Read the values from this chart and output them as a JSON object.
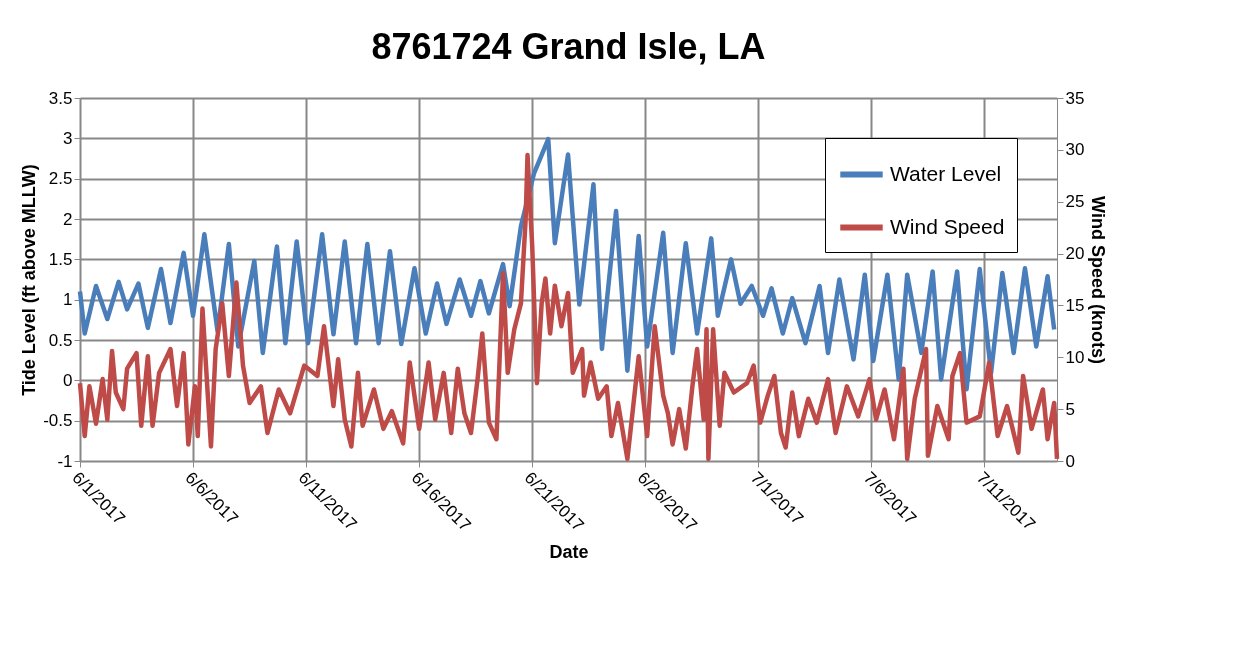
{
  "chart_data": {
    "type": "line",
    "title": "8761724 Grand Isle, LA",
    "xlabel": "Date",
    "ylabel": "Tide Level (ft above MLLW)",
    "y2label": "Wind Speed (knots)",
    "xlim": [
      "2017-06-01",
      "2017-07-14T05:00"
    ],
    "xticks": [
      {
        "value": "2017-06-01",
        "label": "6/1/2017"
      },
      {
        "value": "2017-06-06",
        "label": "6/6/2017"
      },
      {
        "value": "2017-06-11",
        "label": "6/11/2017"
      },
      {
        "value": "2017-06-16",
        "label": "6/16/2017"
      },
      {
        "value": "2017-06-21",
        "label": "6/21/2017"
      },
      {
        "value": "2017-06-26",
        "label": "6/26/2017"
      },
      {
        "value": "2017-07-01",
        "label": "7/1/2017"
      },
      {
        "value": "2017-07-06",
        "label": "7/6/2017"
      },
      {
        "value": "2017-07-11",
        "label": "7/11/2017"
      }
    ],
    "ylim": [
      -1,
      3.5
    ],
    "yticks": [
      -1,
      -0.5,
      0,
      0.5,
      1,
      1.5,
      2,
      2.5,
      3,
      3.5
    ],
    "y2lim": [
      0,
      35
    ],
    "y2ticks": [
      0,
      5,
      10,
      15,
      20,
      25,
      30,
      35
    ],
    "grid": true,
    "legend": "top right",
    "line_style": "solid",
    "marker": "none",
    "series": [
      {
        "name": "Water Level",
        "color": "#4a7ebb",
        "x": [
          "2017-06-01T00:00",
          "2017-06-01T05:00",
          "2017-06-01T17:00",
          "2017-06-02T05:00",
          "2017-06-02T17:00",
          "2017-06-03T02:00",
          "2017-06-03T14:00",
          "2017-06-04T00:00",
          "2017-06-04T14:00",
          "2017-06-05T00:00",
          "2017-06-05T14:00",
          "2017-06-06T00:00",
          "2017-06-06T12:00",
          "2017-06-07T02:00",
          "2017-06-07T14:00",
          "2017-06-08T00:00",
          "2017-06-08T17:00",
          "2017-06-09T02:00",
          "2017-06-09T17:00",
          "2017-06-10T02:00",
          "2017-06-10T14:00",
          "2017-06-11T02:00",
          "2017-06-11T17:00",
          "2017-06-12T05:00",
          "2017-06-12T17:00",
          "2017-06-13T05:00",
          "2017-06-13T17:00",
          "2017-06-14T05:00",
          "2017-06-14T17:00",
          "2017-06-15T05:00",
          "2017-06-15T19:00",
          "2017-06-16T07:00",
          "2017-06-16T19:00",
          "2017-06-17T05:00",
          "2017-06-17T19:00",
          "2017-06-18T07:00",
          "2017-06-18T17:00",
          "2017-06-19T02:00",
          "2017-06-19T17:00",
          "2017-06-20T00:00",
          "2017-06-20T12:00",
          "2017-06-21T02:00",
          "2017-06-21T17:00",
          "2017-06-22T00:00",
          "2017-06-22T14:00",
          "2017-06-23T02:00",
          "2017-06-23T17:00",
          "2017-06-24T02:00",
          "2017-06-24T17:00",
          "2017-06-25T05:00",
          "2017-06-25T17:00",
          "2017-06-26T02:00",
          "2017-06-26T19:00",
          "2017-06-27T05:00",
          "2017-06-27T19:00",
          "2017-06-28T07:00",
          "2017-06-28T22:00",
          "2017-06-29T05:00",
          "2017-06-29T19:00",
          "2017-06-30T05:00",
          "2017-06-30T17:00",
          "2017-07-01T05:00",
          "2017-07-01T14:00",
          "2017-07-02T02:00",
          "2017-07-02T12:00",
          "2017-07-03T02:00",
          "2017-07-03T17:00",
          "2017-07-04T02:00",
          "2017-07-04T14:00",
          "2017-07-05T05:00",
          "2017-07-05T17:00",
          "2017-07-06T02:00",
          "2017-07-06T17:00",
          "2017-07-07T05:00",
          "2017-07-07T14:00",
          "2017-07-08T05:00",
          "2017-07-08T17:00",
          "2017-07-09T02:00",
          "2017-07-09T19:00",
          "2017-07-10T05:00",
          "2017-07-10T19:00",
          "2017-07-11T07:00",
          "2017-07-11T19:00",
          "2017-07-12T07:00",
          "2017-07-12T19:00",
          "2017-07-13T07:00",
          "2017-07-13T19:00",
          "2017-07-14T02:00"
        ],
        "values": [
          1.1,
          0.58,
          1.17,
          0.76,
          1.22,
          0.88,
          1.2,
          0.65,
          1.38,
          0.71,
          1.58,
          0.8,
          1.81,
          0.61,
          1.69,
          0.42,
          1.48,
          0.34,
          1.66,
          0.46,
          1.72,
          0.46,
          1.81,
          0.57,
          1.72,
          0.46,
          1.69,
          0.46,
          1.6,
          0.45,
          1.39,
          0.58,
          1.2,
          0.7,
          1.25,
          0.8,
          1.23,
          0.83,
          1.44,
          0.92,
          1.91,
          2.57,
          2.99,
          1.7,
          2.8,
          0.94,
          2.43,
          0.39,
          2.1,
          0.12,
          1.79,
          0.42,
          1.83,
          0.34,
          1.7,
          0.58,
          1.76,
          0.8,
          1.5,
          0.95,
          1.17,
          0.8,
          1.14,
          0.58,
          1.02,
          0.46,
          1.17,
          0.34,
          1.25,
          0.26,
          1.31,
          0.24,
          1.31,
          0.01,
          1.31,
          0.34,
          1.35,
          0.01,
          1.35,
          -0.11,
          1.38,
          0.09,
          1.33,
          0.34,
          1.39,
          0.42,
          1.29,
          0.63
        ]
      },
      {
        "name": "Wind Speed",
        "color": "#be4b48",
        "axis": "y2",
        "x": [
          "2017-06-01T00:00",
          "2017-06-01T05:00",
          "2017-06-01T10:00",
          "2017-06-01T17:00",
          "2017-06-02T00:00",
          "2017-06-02T05:00",
          "2017-06-02T10:00",
          "2017-06-02T14:00",
          "2017-06-02T22:00",
          "2017-06-03T02:00",
          "2017-06-03T12:00",
          "2017-06-03T17:00",
          "2017-06-04T00:00",
          "2017-06-04T05:00",
          "2017-06-04T12:00",
          "2017-06-05T00:00",
          "2017-06-05T07:00",
          "2017-06-05T14:00",
          "2017-06-05T19:00",
          "2017-06-06T02:00",
          "2017-06-06T05:00",
          "2017-06-06T10:00",
          "2017-06-06T19:00",
          "2017-06-07T00:00",
          "2017-06-07T07:00",
          "2017-06-07T14:00",
          "2017-06-07T22:00",
          "2017-06-08T05:00",
          "2017-06-08T12:00",
          "2017-06-09T00:00",
          "2017-06-09T07:00",
          "2017-06-09T19:00",
          "2017-06-10T07:00",
          "2017-06-10T22:00",
          "2017-06-11T12:00",
          "2017-06-11T19:00",
          "2017-06-12T05:00",
          "2017-06-12T10:00",
          "2017-06-12T17:00",
          "2017-06-13T00:00",
          "2017-06-13T07:00",
          "2017-06-13T12:00",
          "2017-06-14T00:00",
          "2017-06-14T10:00",
          "2017-06-14T19:00",
          "2017-06-15T07:00",
          "2017-06-15T14:00",
          "2017-06-16T00:00",
          "2017-06-16T10:00",
          "2017-06-16T17:00",
          "2017-06-17T02:00",
          "2017-06-17T10:00",
          "2017-06-17T17:00",
          "2017-06-18T00:00",
          "2017-06-18T07:00",
          "2017-06-18T14:00",
          "2017-06-18T19:00",
          "2017-06-19T02:00",
          "2017-06-19T10:00",
          "2017-06-19T17:00",
          "2017-06-19T22:00",
          "2017-06-20T05:00",
          "2017-06-20T12:00",
          "2017-06-20T17:00",
          "2017-06-20T19:00",
          "2017-06-21T00:00",
          "2017-06-21T05:00",
          "2017-06-21T10:00",
          "2017-06-21T14:00",
          "2017-06-21T19:00",
          "2017-06-22T00:00",
          "2017-06-22T07:00",
          "2017-06-22T14:00",
          "2017-06-22T19:00",
          "2017-06-23T05:00",
          "2017-06-23T07:00",
          "2017-06-23T14:00",
          "2017-06-23T22:00",
          "2017-06-24T07:00",
          "2017-06-24T12:00",
          "2017-06-24T19:00",
          "2017-06-25T05:00",
          "2017-06-25T10:00",
          "2017-06-25T17:00",
          "2017-06-26T02:00",
          "2017-06-26T10:00",
          "2017-06-26T19:00",
          "2017-06-27T00:00",
          "2017-06-27T05:00",
          "2017-06-27T12:00",
          "2017-06-27T19:00",
          "2017-06-28T02:00",
          "2017-06-28T07:00",
          "2017-06-28T14:00",
          "2017-06-28T17:00",
          "2017-06-28T19:00",
          "2017-06-29T00:00",
          "2017-06-29T07:00",
          "2017-06-29T12:00",
          "2017-06-29T22:00",
          "2017-06-30T07:00",
          "2017-06-30T12:00",
          "2017-06-30T19:00",
          "2017-07-01T02:00",
          "2017-07-01T10:00",
          "2017-07-01T17:00",
          "2017-07-02T00:00",
          "2017-07-02T05:00",
          "2017-07-02T12:00",
          "2017-07-02T19:00",
          "2017-07-03T05:00",
          "2017-07-03T14:00",
          "2017-07-04T02:00",
          "2017-07-04T10:00",
          "2017-07-04T22:00",
          "2017-07-05T10:00",
          "2017-07-05T22:00",
          "2017-07-06T05:00",
          "2017-07-06T14:00",
          "2017-07-07T00:00",
          "2017-07-07T10:00",
          "2017-07-07T14:00",
          "2017-07-07T22:00",
          "2017-07-08T10:00",
          "2017-07-08T12:00",
          "2017-07-08T22:00",
          "2017-07-09T10:00",
          "2017-07-09T14:00",
          "2017-07-09T22:00",
          "2017-07-10T05:00",
          "2017-07-10T19:00",
          "2017-07-11T05:00",
          "2017-07-11T14:00",
          "2017-07-12T00:00",
          "2017-07-12T12:00",
          "2017-07-12T17:00",
          "2017-07-13T02:00",
          "2017-07-13T14:00",
          "2017-07-13T19:00",
          "2017-07-14T02:00",
          "2017-07-14T05:00"
        ],
        "values": [
          7.5,
          2.4,
          7.2,
          3.6,
          7.9,
          4.0,
          10.6,
          6.6,
          5.0,
          8.9,
          10.4,
          3.4,
          10.1,
          3.4,
          8.5,
          10.8,
          5.3,
          10.4,
          1.6,
          7.2,
          2.4,
          14.7,
          1.4,
          10.8,
          15.2,
          8.2,
          17.2,
          9.2,
          5.6,
          7.2,
          2.7,
          6.9,
          4.6,
          9.2,
          8.2,
          13.0,
          5.3,
          9.8,
          4.0,
          1.4,
          8.5,
          3.4,
          6.9,
          3.1,
          4.8,
          1.7,
          9.5,
          3.1,
          9.5,
          4.0,
          8.5,
          2.7,
          8.9,
          4.6,
          2.7,
          7.9,
          12.3,
          3.7,
          2.1,
          18.1,
          8.5,
          12.7,
          15.2,
          23.3,
          29.5,
          20.7,
          7.5,
          15.2,
          17.6,
          12.3,
          16.9,
          13.0,
          16.2,
          8.5,
          10.8,
          6.3,
          9.5,
          6.0,
          7.2,
          2.4,
          5.6,
          0.2,
          4.3,
          10.1,
          2.4,
          13.0,
          6.3,
          4.6,
          1.6,
          5.0,
          1.2,
          7.2,
          10.8,
          4.0,
          12.7,
          0.2,
          12.7,
          3.4,
          8.5,
          6.6,
          7.2,
          7.5,
          9.2,
          3.7,
          6.3,
          8.2,
          2.7,
          1.3,
          6.6,
          2.4,
          6.0,
          3.7,
          7.9,
          2.7,
          7.2,
          4.3,
          7.9,
          4.0,
          6.9,
          2.1,
          8.9,
          0.2,
          6.0,
          10.8,
          0.5,
          5.3,
          2.1,
          8.2,
          10.4,
          3.7,
          4.3,
          9.5,
          2.4,
          5.3,
          0.8,
          8.2,
          3.1,
          6.9,
          2.1,
          5.6,
          0.2
        ]
      }
    ]
  }
}
